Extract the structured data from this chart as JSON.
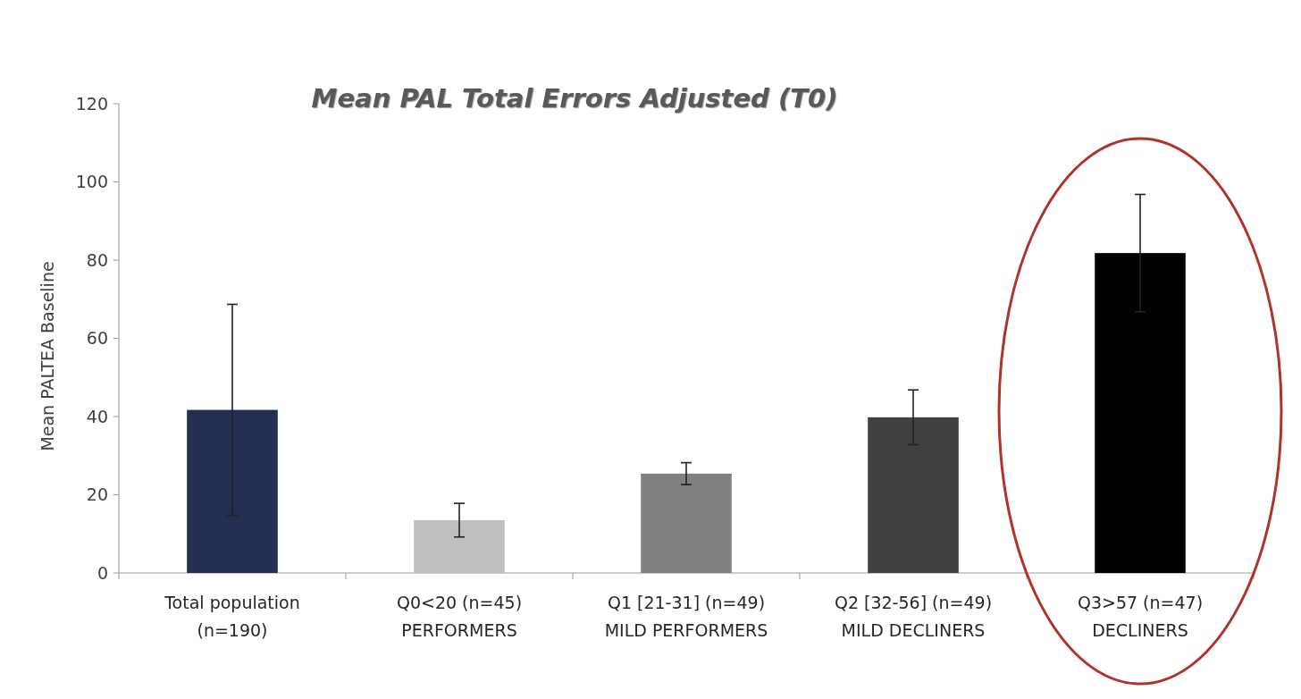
{
  "chart_data": {
    "type": "bar",
    "title": "Mean PAL Total Errors Adjusted (T0)",
    "ylabel": "Mean PALTEA Baseline",
    "categories": [
      "Total population\n(n=190)",
      "Q0<20 (n=45)\nPERFORMERS",
      "Q1 [21-31] (n=49)\nMILD PERFORMERS",
      "Q2 [32-56] (n=49)\nMILD DECLINERS",
      "Q3>57 (n=47)\nDECLINERS"
    ],
    "values": [
      41.7,
      13.5,
      25.4,
      39.8,
      81.8
    ],
    "errors": [
      27,
      4.3,
      2.8,
      7,
      15
    ],
    "colors": [
      "#232e52",
      "#bfbfbf",
      "#7f7f7f",
      "#404040",
      "#000000"
    ],
    "ylim": [
      0,
      120
    ],
    "yticks": [
      0,
      20,
      40,
      60,
      80,
      100,
      120
    ],
    "grid": false
  }
}
